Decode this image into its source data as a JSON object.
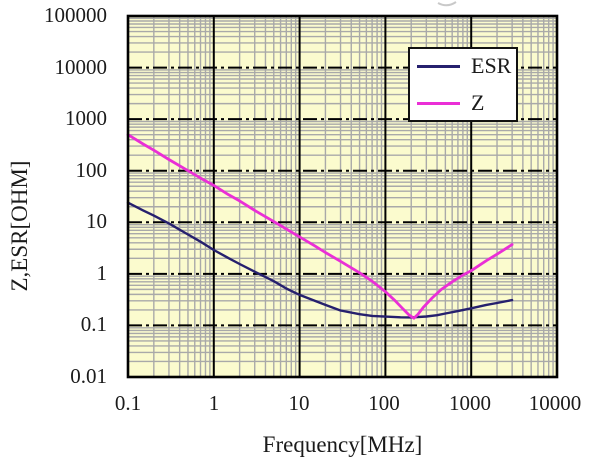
{
  "chart_data": {
    "type": "line",
    "title": "",
    "xlabel": "Frequency[MHz]",
    "ylabel": "Z,ESR[OHM]",
    "x_scale": "log",
    "y_scale": "log",
    "xlim": [
      0.1,
      10000
    ],
    "ylim": [
      0.01,
      100000
    ],
    "x_ticks": [
      "0.1",
      "1",
      "10",
      "100",
      "1000",
      "10000"
    ],
    "y_ticks": [
      "100000",
      "10000",
      "1000",
      "100",
      "10",
      "1",
      "0.1",
      "0.01"
    ],
    "grid": "major+minor log grid",
    "legend_position": "top-right-inside",
    "plot_bg": "#fbfbce",
    "minor_grid_color": "#a9a9a9",
    "major_grid_color": "#000000",
    "frame_color": "#000000",
    "series": [
      {
        "name": "ESR",
        "color": "#26206e",
        "points": [
          [
            0.1,
            24
          ],
          [
            0.15,
            17
          ],
          [
            0.2,
            13.5
          ],
          [
            0.3,
            9.5
          ],
          [
            0.5,
            5.8
          ],
          [
            0.7,
            4.2
          ],
          [
            1,
            2.9
          ],
          [
            1.5,
            2.0
          ],
          [
            2,
            1.55
          ],
          [
            3,
            1.1
          ],
          [
            5,
            0.72
          ],
          [
            7,
            0.52
          ],
          [
            10,
            0.39
          ],
          [
            15,
            0.3
          ],
          [
            20,
            0.25
          ],
          [
            30,
            0.195
          ],
          [
            50,
            0.165
          ],
          [
            70,
            0.153
          ],
          [
            100,
            0.148
          ],
          [
            150,
            0.144
          ],
          [
            200,
            0.143
          ],
          [
            300,
            0.149
          ],
          [
            400,
            0.158
          ],
          [
            500,
            0.17
          ],
          [
            700,
            0.19
          ],
          [
            1000,
            0.215
          ],
          [
            1500,
            0.25
          ],
          [
            2000,
            0.272
          ],
          [
            3000,
            0.31
          ]
        ]
      },
      {
        "name": "Z",
        "color": "#ea2fd6",
        "points": [
          [
            0.1,
            500
          ],
          [
            0.15,
            330
          ],
          [
            0.2,
            250
          ],
          [
            0.3,
            165
          ],
          [
            0.5,
            100
          ],
          [
            0.7,
            72
          ],
          [
            1,
            52
          ],
          [
            1.5,
            34
          ],
          [
            2,
            26
          ],
          [
            3,
            17
          ],
          [
            5,
            10.3
          ],
          [
            7,
            7.4
          ],
          [
            10,
            5.2
          ],
          [
            15,
            3.5
          ],
          [
            20,
            2.6
          ],
          [
            30,
            1.75
          ],
          [
            50,
            1.05
          ],
          [
            70,
            0.72
          ],
          [
            100,
            0.45
          ],
          [
            130,
            0.3
          ],
          [
            160,
            0.21
          ],
          [
            190,
            0.158
          ],
          [
            215,
            0.138
          ],
          [
            240,
            0.165
          ],
          [
            280,
            0.23
          ],
          [
            350,
            0.34
          ],
          [
            450,
            0.5
          ],
          [
            600,
            0.7
          ],
          [
            800,
            0.95
          ],
          [
            1000,
            1.15
          ],
          [
            1500,
            1.8
          ],
          [
            2000,
            2.4
          ],
          [
            3000,
            3.7
          ]
        ]
      }
    ]
  }
}
